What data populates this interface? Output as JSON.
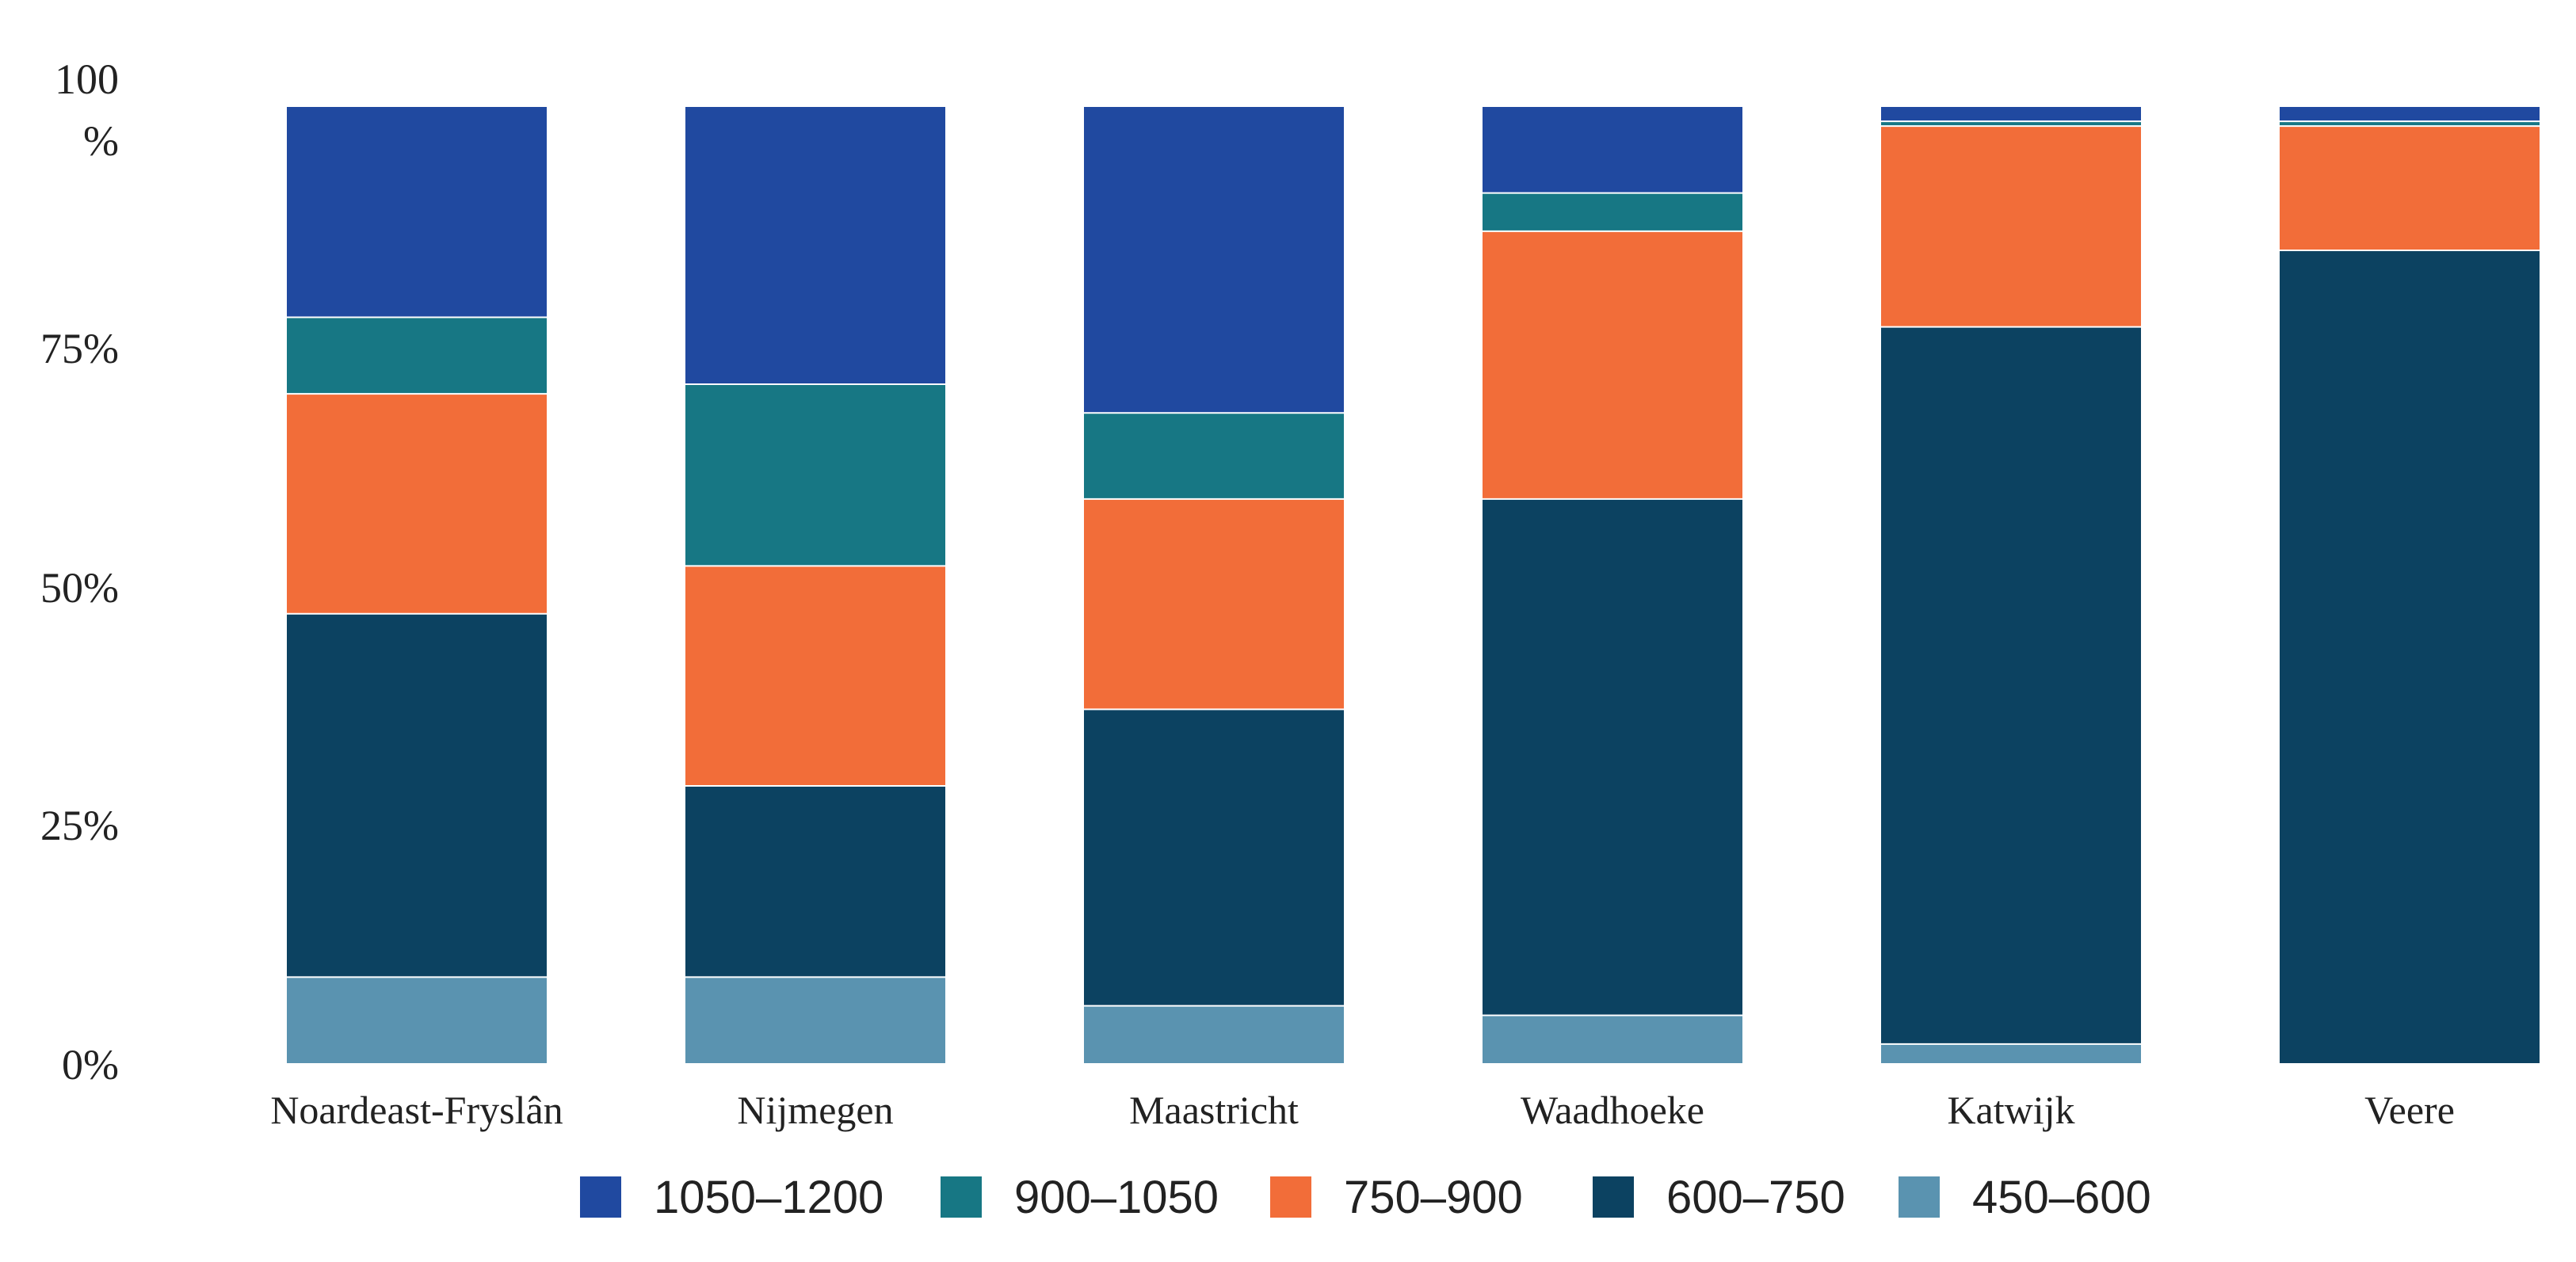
{
  "chart_data": {
    "type": "bar",
    "stacked": true,
    "percent": true,
    "categories": [
      "Noardeast-Fryslân",
      "Nijmegen",
      "Maastricht",
      "Waadhoeke",
      "Katwijk",
      "Veere"
    ],
    "series": [
      {
        "name": "450–600",
        "color": "#5a93b0",
        "values": [
          9,
          9,
          6,
          5,
          2,
          0
        ]
      },
      {
        "name": "600–750",
        "color": "#0c4261",
        "values": [
          38,
          20,
          31,
          54,
          75,
          85
        ]
      },
      {
        "name": "750–900",
        "color": "#f26d39",
        "values": [
          23,
          23,
          22,
          28,
          21,
          13
        ]
      },
      {
        "name": "900–1050",
        "color": "#177784",
        "values": [
          8,
          19,
          9,
          4,
          0.5,
          0.5
        ]
      },
      {
        "name": "1050–1200",
        "color": "#2049a0",
        "values": [
          22,
          29,
          32,
          9,
          1.5,
          1.5
        ]
      }
    ],
    "y_ticks": [
      {
        "value": 0,
        "label": "0%"
      },
      {
        "value": 25,
        "label": "25%"
      },
      {
        "value": 50,
        "label": "50%"
      },
      {
        "value": 75,
        "label": "75%"
      },
      {
        "value": 100,
        "label": "100 %"
      }
    ],
    "ylim": [
      0,
      100
    ],
    "legend_order": [
      "1050–1200",
      "900–1050",
      "750–900",
      "600–750",
      "450–600"
    ],
    "legend_position": "bottom",
    "grid": false
  }
}
